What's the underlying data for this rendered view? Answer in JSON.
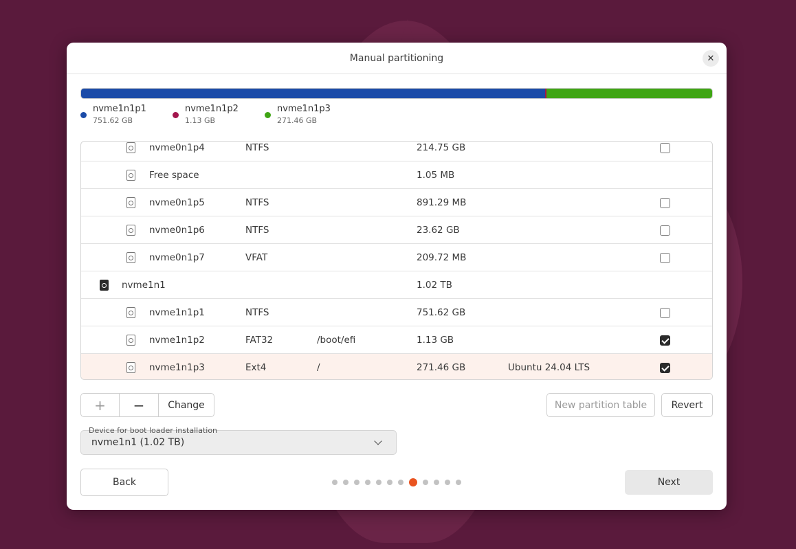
{
  "dialog": {
    "title": "Manual partitioning"
  },
  "usage": {
    "segments": [
      {
        "name": "nvme1n1p1",
        "size": "751.62 GB",
        "color": "#1b4ba8"
      },
      {
        "name": "nvme1n1p2",
        "size": "1.13 GB",
        "color": "#a3154d"
      },
      {
        "name": "nvme1n1p3",
        "size": "271.46 GB",
        "color": "#3fa514"
      }
    ]
  },
  "table": {
    "rows": [
      {
        "device": "nvme0n1p4",
        "type": "NTFS",
        "mount": "",
        "size": "214.75 GB",
        "system": "",
        "format": false,
        "level": "partition",
        "has_checkbox": true
      },
      {
        "device": "Free space",
        "type": "",
        "mount": "",
        "size": "1.05 MB",
        "system": "",
        "format": false,
        "level": "partition",
        "has_checkbox": false
      },
      {
        "device": "nvme0n1p5",
        "type": "NTFS",
        "mount": "",
        "size": "891.29 MB",
        "system": "",
        "format": false,
        "level": "partition",
        "has_checkbox": true
      },
      {
        "device": "nvme0n1p6",
        "type": "NTFS",
        "mount": "",
        "size": "23.62 GB",
        "system": "",
        "format": false,
        "level": "partition",
        "has_checkbox": true
      },
      {
        "device": "nvme0n1p7",
        "type": "VFAT",
        "mount": "",
        "size": "209.72 MB",
        "system": "",
        "format": false,
        "level": "partition",
        "has_checkbox": true
      },
      {
        "device": "nvme1n1",
        "type": "",
        "mount": "",
        "size": "1.02 TB",
        "system": "",
        "format": false,
        "level": "disk",
        "has_checkbox": false
      },
      {
        "device": "nvme1n1p1",
        "type": "NTFS",
        "mount": "",
        "size": "751.62 GB",
        "system": "",
        "format": false,
        "level": "partition",
        "has_checkbox": true
      },
      {
        "device": "nvme1n1p2",
        "type": "FAT32",
        "mount": "/boot/efi",
        "size": "1.13 GB",
        "system": "",
        "format": true,
        "level": "partition",
        "has_checkbox": true
      },
      {
        "device": "nvme1n1p3",
        "type": "Ext4",
        "mount": "/",
        "size": "271.46 GB",
        "system": "Ubuntu 24.04 LTS",
        "format": true,
        "level": "partition",
        "has_checkbox": true,
        "selected": true
      }
    ]
  },
  "toolbar": {
    "add_label": "+",
    "remove_label": "−",
    "change_label": "Change",
    "new_table_label": "New partition table",
    "revert_label": "Revert"
  },
  "bootloader": {
    "label": "Device for boot loader installation",
    "value": "nvme1n1  (1.02 TB)"
  },
  "nav": {
    "back_label": "Back",
    "next_label": "Next",
    "total_steps": 12,
    "current_step": 8,
    "accent": "#e95420"
  }
}
